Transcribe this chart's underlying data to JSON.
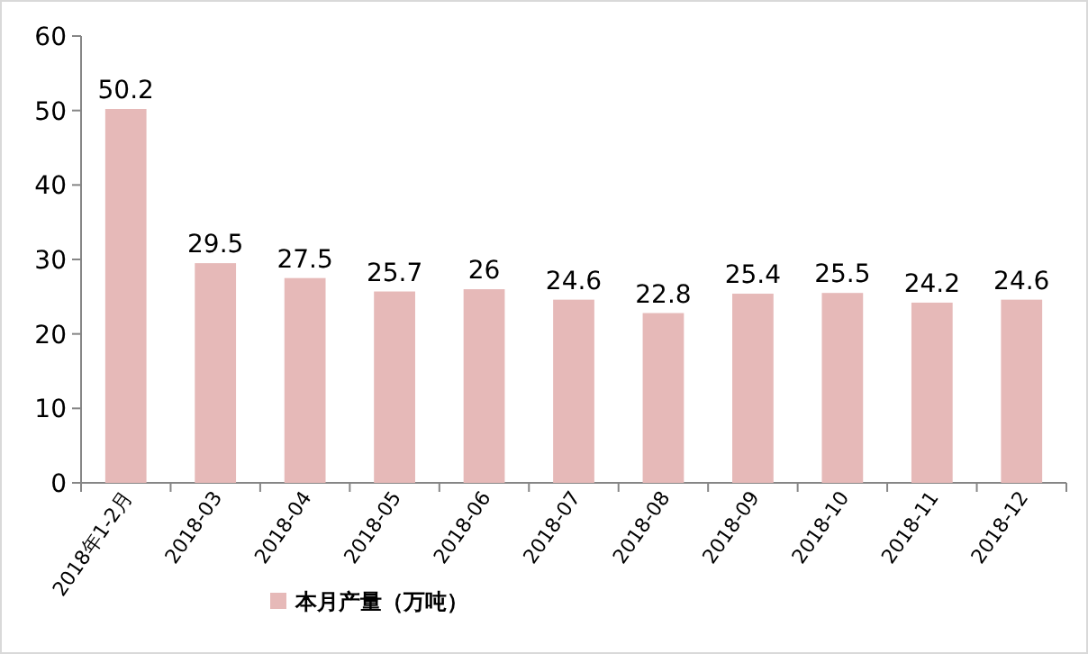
{
  "chart_data": {
    "type": "bar",
    "categories": [
      "2018年1-2月",
      "2018-03",
      "2018-04",
      "2018-05",
      "2018-06",
      "2018-07",
      "2018-08",
      "2018-09",
      "2018-10",
      "2018-11",
      "2018-12"
    ],
    "series": [
      {
        "name": "本月产量（万吨）",
        "color": "#e6b9b8",
        "values": [
          50.2,
          29.5,
          27.5,
          25.7,
          26,
          24.6,
          22.8,
          25.4,
          25.5,
          24.2,
          24.6
        ]
      }
    ],
    "ylim": [
      0,
      60
    ],
    "yticks": [
      0,
      10,
      20,
      30,
      40,
      50,
      60
    ],
    "data_labels": true,
    "legend": "bottom"
  }
}
